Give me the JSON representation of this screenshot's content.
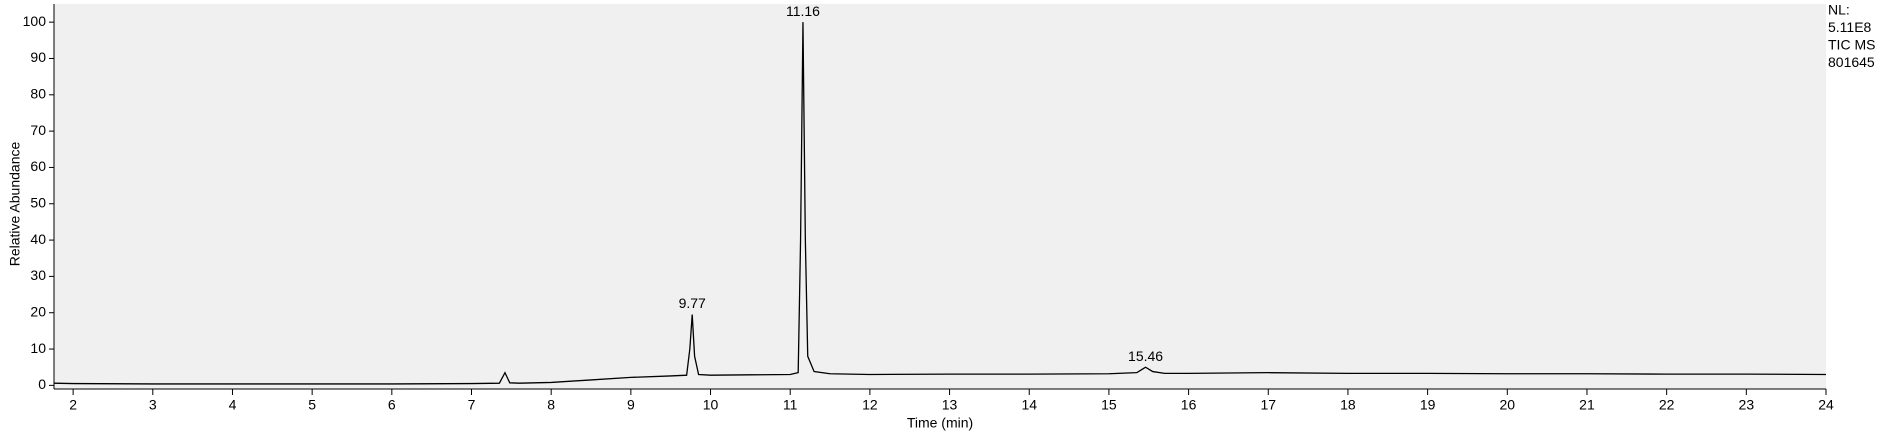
{
  "chart_data": {
    "type": "line",
    "xlabel": "Time (min)",
    "ylabel": "Relative Abundance",
    "info": [
      "NL:",
      "5.11E8",
      "TIC  MS",
      "801645"
    ],
    "x": [
      1.76,
      2,
      3,
      4,
      5,
      6,
      7,
      7.35,
      7.42,
      7.48,
      7.6,
      8,
      8.5,
      9,
      9.5,
      9.7,
      9.74,
      9.77,
      9.8,
      9.85,
      10,
      10.5,
      11,
      11.1,
      11.13,
      11.16,
      11.19,
      11.22,
      11.3,
      11.5,
      12,
      13,
      14,
      15,
      15.35,
      15.46,
      15.55,
      15.7,
      16,
      17,
      18,
      19,
      20,
      21,
      22,
      23,
      24
    ],
    "values": [
      0.6,
      0.5,
      0.4,
      0.4,
      0.4,
      0.4,
      0.5,
      0.6,
      3.5,
      0.7,
      0.6,
      0.8,
      1.5,
      2.2,
      2.6,
      2.8,
      10,
      19.5,
      8,
      3,
      2.8,
      2.9,
      3,
      3.5,
      40,
      100,
      40,
      8,
      3.8,
      3.2,
      3,
      3.1,
      3.1,
      3.2,
      3.5,
      5,
      3.8,
      3.3,
      3.3,
      3.5,
      3.3,
      3.3,
      3.2,
      3.2,
      3.1,
      3.1,
      3
    ],
    "color": "#000000",
    "peaks": [
      {
        "x": 9.77,
        "y": 19.5
      },
      {
        "x": 11.16,
        "y": 100
      },
      {
        "x": 15.46,
        "y": 5
      }
    ],
    "xlim": [
      1.76,
      24
    ],
    "ylim": [
      -1,
      105
    ],
    "xticks": [
      2,
      3,
      4,
      5,
      6,
      7,
      8,
      9,
      10,
      11,
      12,
      13,
      14,
      15,
      16,
      17,
      18,
      19,
      20,
      21,
      22,
      23,
      24
    ],
    "yticks": [
      0,
      10,
      20,
      30,
      40,
      50,
      60,
      70,
      80,
      90,
      100
    ]
  }
}
